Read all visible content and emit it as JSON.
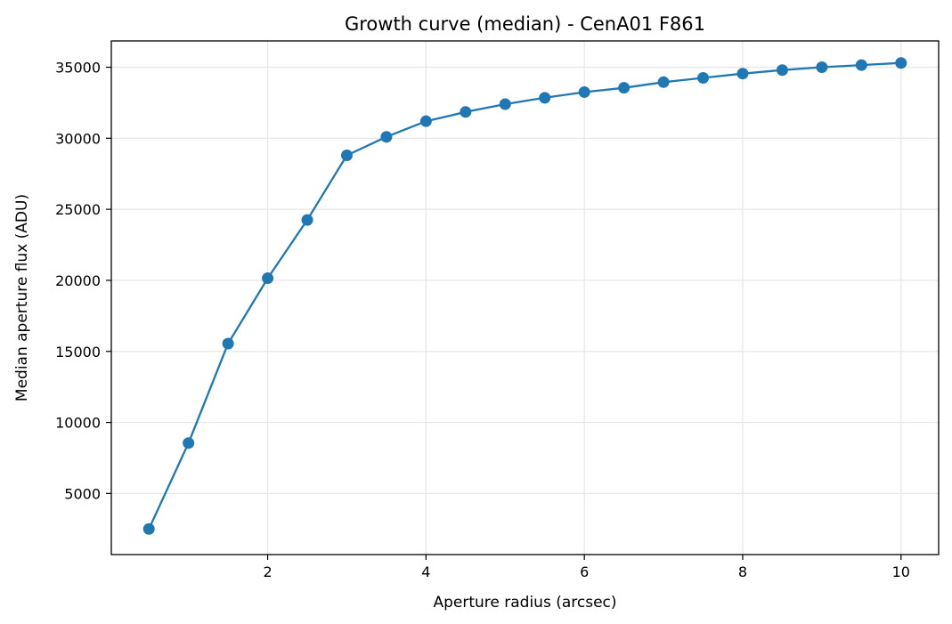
{
  "chart_data": {
    "type": "line",
    "title": "Growth curve (median) - CenA01 F861",
    "xlabel": "Aperture radius (arcsec)",
    "ylabel": "Median aperture flux (ADU)",
    "xlim": [
      0.025,
      10.475
    ],
    "ylim": [
      700,
      36850
    ],
    "xticks": [
      2,
      4,
      6,
      8,
      10
    ],
    "xtick_labels": [
      "2",
      "4",
      "6",
      "8",
      "10"
    ],
    "yticks": [
      5000,
      10000,
      15000,
      20000,
      25000,
      30000,
      35000
    ],
    "ytick_labels": [
      "5000",
      "10000",
      "15000",
      "20000",
      "25000",
      "30000",
      "35000"
    ],
    "grid": true,
    "series": [
      {
        "color": "#1f77b4",
        "marker": "circle",
        "x": [
          0.5,
          1.0,
          1.5,
          2.0,
          2.5,
          3.0,
          3.5,
          4.0,
          4.5,
          5.0,
          5.5,
          6.0,
          6.5,
          7.0,
          7.5,
          8.0,
          8.5,
          9.0,
          9.5,
          10.0
        ],
        "y": [
          2500,
          8550,
          15550,
          20150,
          24250,
          28800,
          30100,
          31200,
          31850,
          32400,
          32850,
          33250,
          33550,
          33950,
          34250,
          34550,
          34800,
          35000,
          35150,
          35300
        ]
      }
    ]
  }
}
